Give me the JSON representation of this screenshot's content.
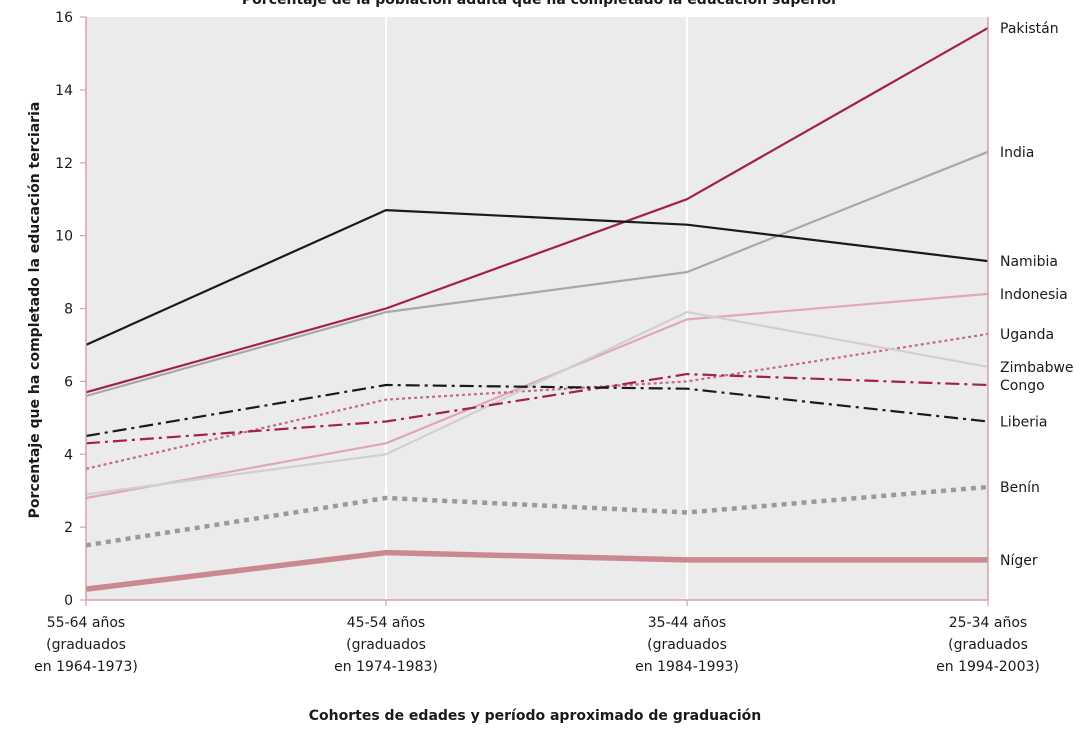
{
  "chart_data": {
    "type": "line",
    "title": "Porcentaje de la población adulta que ha completado la educación superior",
    "xlabel": "Cohortes de edades y período aproximado de graduación",
    "ylabel": "Porcentaje que ha completado la educación terciaria",
    "ylim": [
      0,
      16
    ],
    "yticks": [
      0,
      2,
      4,
      6,
      8,
      10,
      12,
      14,
      16
    ],
    "grid": true,
    "legend": "right (labels at line ends)",
    "categories": [
      {
        "lines": [
          "55-64 años",
          "(graduados",
          "en 1964-1973)"
        ]
      },
      {
        "lines": [
          "45-54 años",
          "(graduados",
          "en 1974-1983)"
        ]
      },
      {
        "lines": [
          "35-44 años",
          "(graduados",
          "en 1984-1993)"
        ]
      },
      {
        "lines": [
          "25-34 años",
          "(graduados",
          "en 1994-2003)"
        ]
      }
    ],
    "colors": {
      "plot_background": "#ebebeb",
      "frame": "#d8a0a8",
      "gridline": "#ffffff"
    },
    "series": [
      {
        "name": "Pakistán",
        "values": [
          5.7,
          8.0,
          11.0,
          15.7
        ],
        "color": "#a3204a",
        "style": "solid",
        "width": 2.2
      },
      {
        "name": "India",
        "values": [
          5.6,
          7.9,
          9.0,
          12.3
        ],
        "color": "#a8a8a8",
        "style": "solid",
        "width": 2.2
      },
      {
        "name": "Namibia",
        "values": [
          7.0,
          10.7,
          10.3,
          9.3
        ],
        "color": "#1a1a1a",
        "style": "solid",
        "width": 2.2
      },
      {
        "name": "Indonesia",
        "values": [
          2.8,
          4.3,
          7.7,
          8.4
        ],
        "color": "#e0a9b0",
        "style": "solid",
        "width": 2.2
      },
      {
        "name": "Uganda",
        "values": [
          3.6,
          5.5,
          6.0,
          7.3
        ],
        "color": "#c46a84",
        "style": "dotted",
        "width": 2.2
      },
      {
        "name": "Zimbabwe",
        "values": [
          2.9,
          4.0,
          7.9,
          6.4
        ],
        "color": "#d0d0d0",
        "style": "solid",
        "width": 2.2
      },
      {
        "name": "Congo",
        "values": [
          4.3,
          4.9,
          6.2,
          5.9
        ],
        "color": "#a3204a",
        "style": "dashdot",
        "width": 2.2
      },
      {
        "name": "Liberia",
        "values": [
          4.5,
          5.9,
          5.8,
          4.9
        ],
        "color": "#1a1a1a",
        "style": "dashdot",
        "width": 2.2
      },
      {
        "name": "Benín",
        "values": [
          1.5,
          2.8,
          2.4,
          3.1
        ],
        "color": "#9a9a9a",
        "style": "dotted-thick",
        "width": 4.5
      },
      {
        "name": "Níger",
        "values": [
          0.3,
          1.3,
          1.1,
          1.1
        ],
        "color": "#cc8890",
        "style": "solid",
        "width": 5.5
      }
    ]
  }
}
